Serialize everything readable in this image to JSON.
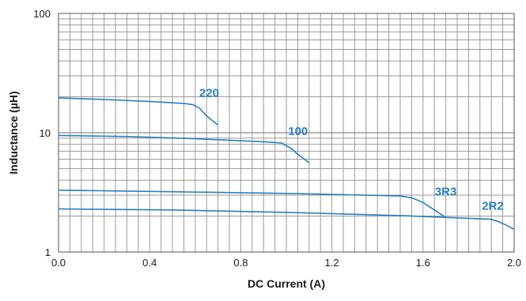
{
  "chart_data": {
    "type": "line",
    "title": "",
    "xlabel": "DC Current (A)",
    "ylabel": "Inductance (µH)",
    "xlim": [
      0.0,
      2.0
    ],
    "ylim": [
      1,
      100
    ],
    "yscale": "log",
    "grid": true,
    "legend": "none",
    "line_color": "#2a7fbf",
    "label_color": "#2a80c0",
    "x_tick_labels": [
      "0.0",
      "0.4",
      "0.8",
      "1.2",
      "1.6",
      "2.0"
    ],
    "y_tick_labels": [
      "1",
      "10",
      "100"
    ],
    "series": [
      {
        "name": "220",
        "x": [
          0.0,
          0.2,
          0.4,
          0.55,
          0.59,
          0.62,
          0.65,
          0.7
        ],
        "y": [
          19.6,
          19.0,
          18.3,
          17.6,
          17.2,
          16.0,
          13.8,
          11.6
        ]
      },
      {
        "name": "100",
        "x": [
          0.0,
          0.3,
          0.6,
          0.9,
          0.98,
          1.02,
          1.05,
          1.1
        ],
        "y": [
          9.5,
          9.3,
          8.9,
          8.4,
          8.2,
          7.4,
          6.6,
          5.6
        ]
      },
      {
        "name": "3R3",
        "x": [
          0.0,
          0.5,
          1.0,
          1.5,
          1.55,
          1.6,
          1.65,
          1.7
        ],
        "y": [
          3.3,
          3.2,
          3.1,
          2.95,
          2.85,
          2.6,
          2.25,
          1.95
        ]
      },
      {
        "name": "2R2",
        "x": [
          0.0,
          0.5,
          1.0,
          1.5,
          1.9,
          1.93,
          1.96,
          2.0
        ],
        "y": [
          2.3,
          2.25,
          2.15,
          2.02,
          1.88,
          1.8,
          1.7,
          1.55
        ]
      }
    ]
  }
}
